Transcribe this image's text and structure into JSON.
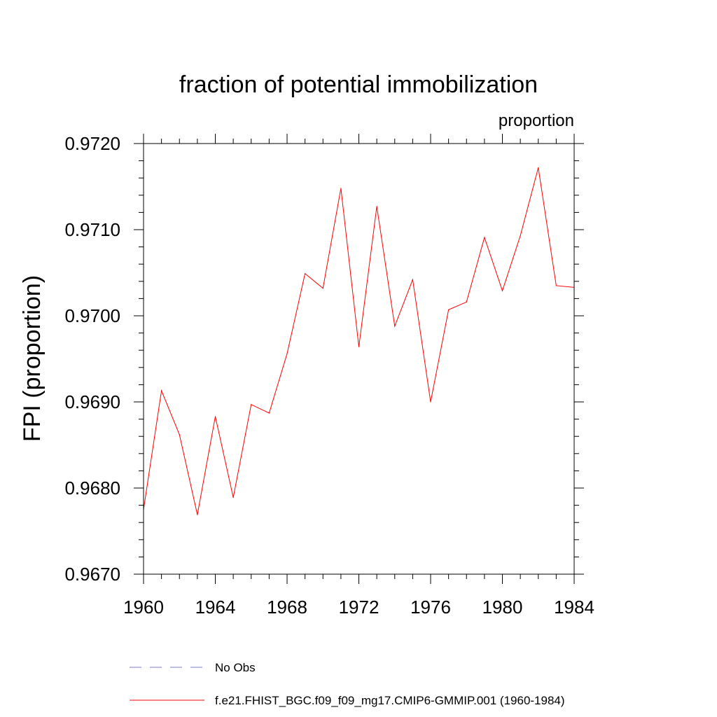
{
  "chart_data": {
    "type": "line",
    "title": "fraction of potential immobilization",
    "units_label": "proportion",
    "ylabel": "FPI  (proportion)",
    "xlabel": "",
    "xlim": [
      1960,
      1984
    ],
    "ylim": [
      0.967,
      0.972
    ],
    "x_ticks": [
      1960,
      1964,
      1968,
      1972,
      1976,
      1980,
      1984
    ],
    "x_tick_labels": [
      "1960",
      "1964",
      "1968",
      "1972",
      "1976",
      "1980",
      "1984"
    ],
    "y_ticks": [
      0.967,
      0.968,
      0.969,
      0.97,
      0.971,
      0.972
    ],
    "y_tick_labels": [
      "0.9670",
      "0.9680",
      "0.9690",
      "0.9700",
      "0.9710",
      "0.9720"
    ],
    "grid": false,
    "legend_position": "bottom",
    "series": [
      {
        "name": "f.e21.FHIST_BGC.f09_f09_mg17.CMIP6-GMMIP.001 (1960-1984)",
        "color": "#ff0000",
        "style": "solid",
        "x": [
          1960,
          1961,
          1962,
          1963,
          1964,
          1965,
          1966,
          1967,
          1968,
          1969,
          1970,
          1971,
          1972,
          1973,
          1974,
          1975,
          1976,
          1977,
          1978,
          1979,
          1980,
          1981,
          1982,
          1983,
          1984
        ],
        "y": [
          0.96775,
          0.96913,
          0.96862,
          0.96769,
          0.96883,
          0.96789,
          0.96897,
          0.96887,
          0.96956,
          0.97049,
          0.97032,
          0.97148,
          0.96964,
          0.97127,
          0.96988,
          0.97042,
          0.969,
          0.97007,
          0.97016,
          0.97091,
          0.97029,
          0.97093,
          0.97172,
          0.97035,
          0.97033
        ]
      }
    ],
    "legend": [
      {
        "label": "No Obs",
        "color": "#7b7bc4",
        "style": "dashed"
      },
      {
        "label": "f.e21.FHIST_BGC.f09_f09_mg17.CMIP6-GMMIP.001 (1960-1984)",
        "color": "#ff0000",
        "style": "solid"
      }
    ]
  }
}
